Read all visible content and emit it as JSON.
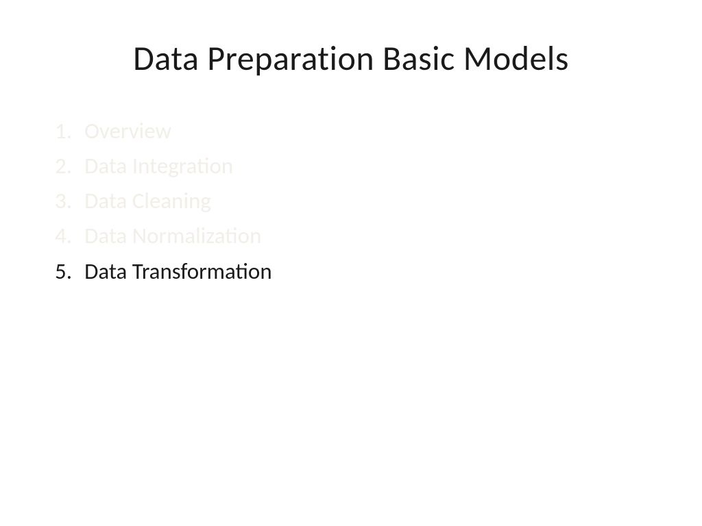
{
  "slide": {
    "title": "Data Preparation Basic Models",
    "items": [
      {
        "number": "1.",
        "label": "Overview",
        "active": false
      },
      {
        "number": "2.",
        "label": "Data Integration",
        "active": false
      },
      {
        "number": "3.",
        "label": "Data Cleaning",
        "active": false
      },
      {
        "number": "4.",
        "label": "Data Normalization",
        "active": false
      },
      {
        "number": "5.",
        "label": "Data Transformation",
        "active": true
      }
    ],
    "colors": {
      "background": "#ffffff",
      "title_color": "#1a1a1a",
      "active_color": "#1a1a1a",
      "faded_color": "#f2efe8"
    },
    "typography": {
      "title_fontsize": 50,
      "item_fontsize": 33,
      "font_family": "Calibri"
    }
  }
}
